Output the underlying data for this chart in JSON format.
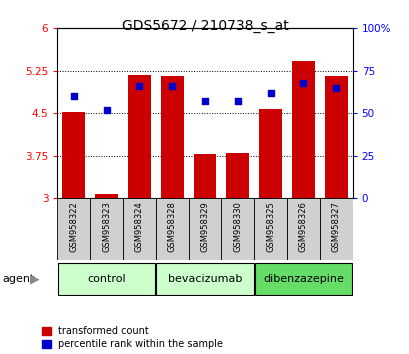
{
  "title": "GDS5672 / 210738_s_at",
  "samples": [
    "GSM958322",
    "GSM958323",
    "GSM958324",
    "GSM958328",
    "GSM958329",
    "GSM958330",
    "GSM958325",
    "GSM958326",
    "GSM958327"
  ],
  "bar_values": [
    4.52,
    3.07,
    5.17,
    5.16,
    3.78,
    3.8,
    4.57,
    5.42,
    5.15
  ],
  "dot_values": [
    60,
    52,
    66,
    66,
    57,
    57,
    62,
    68,
    65
  ],
  "group_defs": [
    {
      "label": "control",
      "start": 0,
      "end": 2,
      "color": "#ccffcc"
    },
    {
      "label": "bevacizumab",
      "start": 3,
      "end": 5,
      "color": "#ccffcc"
    },
    {
      "label": "dibenzazepine",
      "start": 6,
      "end": 8,
      "color": "#66dd66"
    }
  ],
  "bar_color": "#cc0000",
  "dot_color": "#0000cc",
  "ylim_left": [
    3.0,
    6.0
  ],
  "ylim_right": [
    0,
    100
  ],
  "yticks_left": [
    3.0,
    3.75,
    4.5,
    5.25,
    6.0
  ],
  "ytick_labels_left": [
    "3",
    "3.75",
    "4.5",
    "5.25",
    "6"
  ],
  "yticks_right": [
    0,
    25,
    50,
    75,
    100
  ],
  "ytick_labels_right": [
    "0",
    "25",
    "50",
    "75",
    "100%"
  ],
  "bar_width": 0.7,
  "figsize": [
    4.1,
    3.54
  ],
  "dpi": 100,
  "label_gray": "#d0d0d0",
  "spine_color": "#000000"
}
